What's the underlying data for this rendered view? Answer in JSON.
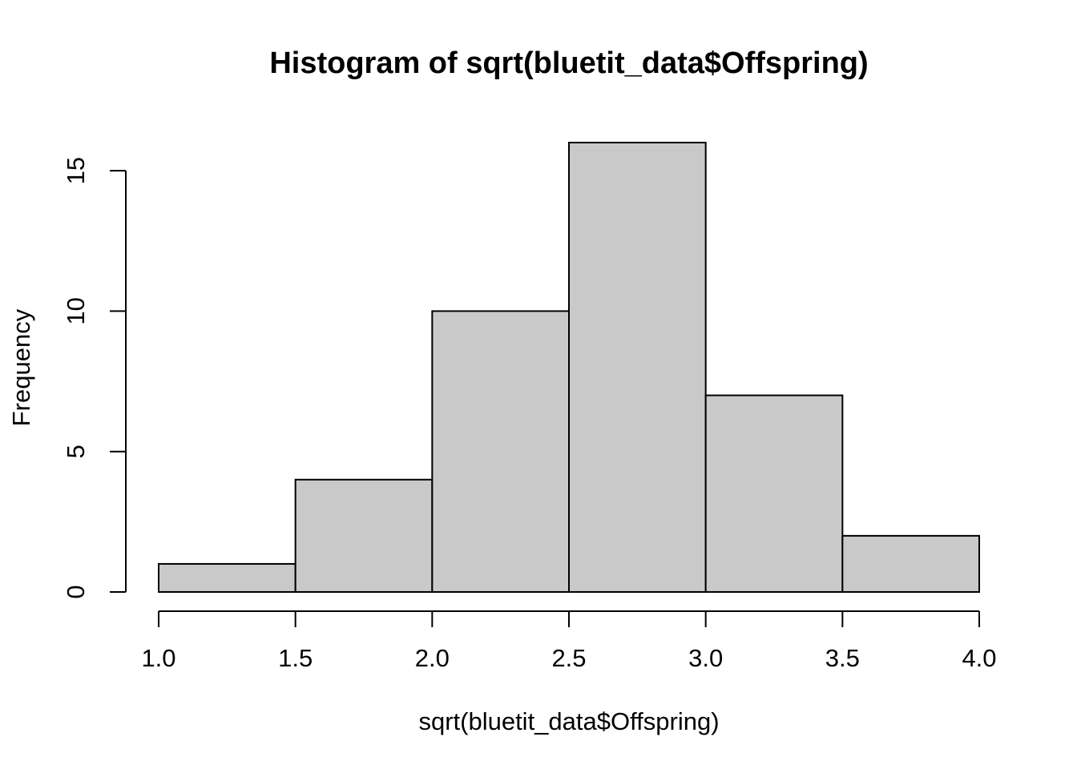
{
  "chart_data": {
    "type": "bar",
    "subtype": "histogram",
    "title": "Histogram of sqrt(bluetit_data$Offspring)",
    "xlabel": "sqrt(bluetit_data$Offspring)",
    "ylabel": "Frequency",
    "breaks": [
      1.0,
      1.5,
      2.0,
      2.5,
      3.0,
      3.5,
      4.0
    ],
    "counts": [
      1,
      4,
      10,
      16,
      7,
      2
    ],
    "xlim": [
      1.0,
      4.0
    ],
    "ylim": [
      0,
      16
    ],
    "x_ticks": {
      "values": [
        1.0,
        1.5,
        2.0,
        2.5,
        3.0,
        3.5,
        4.0
      ],
      "labels": [
        "1.0",
        "1.5",
        "2.0",
        "2.5",
        "3.0",
        "3.5",
        "4.0"
      ]
    },
    "y_ticks": {
      "values": [
        0,
        5,
        10,
        15
      ],
      "labels": [
        "0",
        "5",
        "10",
        "15"
      ]
    },
    "grid": false,
    "legend": "none",
    "colors": {
      "bar_fill": "#C9C9C9",
      "bar_border": "#000000",
      "axis": "#000000",
      "text": "#000000",
      "background": "#FFFFFF"
    }
  }
}
